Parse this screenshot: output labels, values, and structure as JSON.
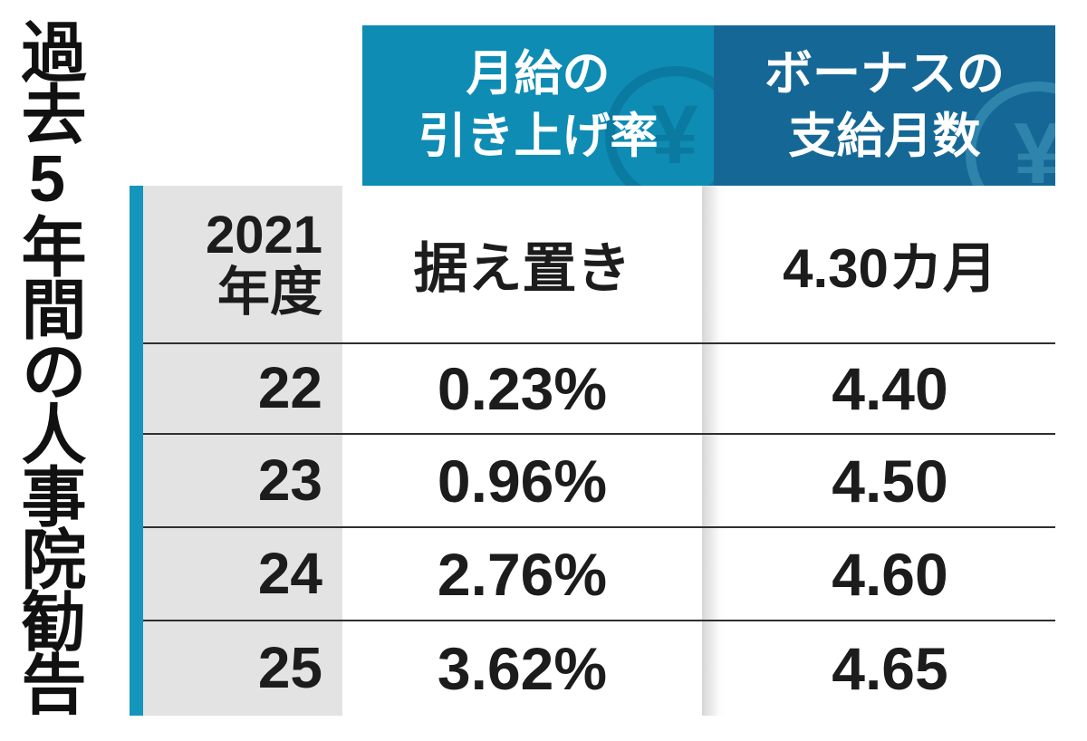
{
  "page": {
    "vertical_title": "過去5年間の人事院勧告",
    "background": "#ffffff"
  },
  "colors": {
    "header_monthly_bg": "#0e8cb4",
    "header_bonus_bg": "#156896",
    "accent_bar": "#1495bc",
    "label_column_bg": "#e3e3e3",
    "row_line": "#2f2f2f",
    "text": "#1c1c1c",
    "header_text": "#ffffff",
    "coin_dark": "#0b7aa0",
    "coin_light": "#2f84ab"
  },
  "icons": {
    "yen_coin": "¥"
  },
  "table": {
    "column_headers": [
      {
        "line1": "月給の",
        "line2": "引き上げ率"
      },
      {
        "line1": "ボーナスの",
        "line2": "支給月数"
      }
    ],
    "rows": [
      {
        "year_line1": "2021",
        "year_line2": "年度",
        "rate": "据え置き",
        "bonus": "4.30カ月"
      },
      {
        "year_line1": "22",
        "year_line2": "",
        "rate": "0.23%",
        "bonus": "4.40"
      },
      {
        "year_line1": "23",
        "year_line2": "",
        "rate": "0.96%",
        "bonus": "4.50"
      },
      {
        "year_line1": "24",
        "year_line2": "",
        "rate": "2.76%",
        "bonus": "4.60"
      },
      {
        "year_line1": "25",
        "year_line2": "",
        "rate": "3.62%",
        "bonus": "4.65"
      }
    ]
  },
  "chart_data": {
    "type": "table",
    "title": "過去5年間の人事院勧告",
    "columns": [
      "年度",
      "月給の引き上げ率",
      "ボーナスの支給月数"
    ],
    "rows": [
      [
        "2021年度",
        "据え置き",
        "4.30カ月"
      ],
      [
        "22",
        "0.23%",
        "4.40"
      ],
      [
        "23",
        "0.96%",
        "4.50"
      ],
      [
        "24",
        "2.76%",
        "4.60"
      ],
      [
        "25",
        "3.62%",
        "4.65"
      ]
    ]
  }
}
